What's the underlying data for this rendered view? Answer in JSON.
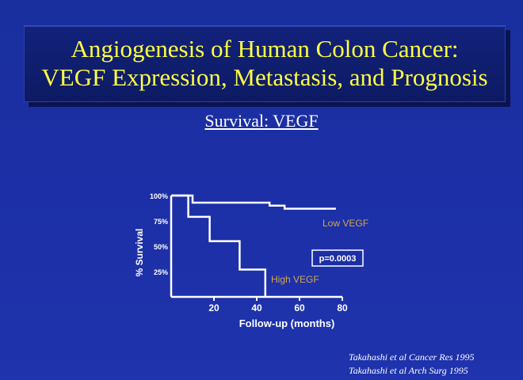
{
  "title": {
    "line1": "Angiogenesis of Human Colon Cancer:",
    "line2": "VEGF Expression, Metastasis, and Prognosis"
  },
  "subtitle": "Survival: VEGF",
  "colors": {
    "background": "#1c2fa6",
    "title_text": "#ffff44",
    "series_label": "#d4a64a",
    "lines": "#ffffff"
  },
  "chart_data": {
    "type": "line",
    "step": true,
    "xlabel": "Follow-up (months)",
    "ylabel": "% Survival",
    "xlim": [
      0,
      80
    ],
    "ylim": [
      0,
      100
    ],
    "x_ticks": [
      20,
      40,
      60,
      80
    ],
    "y_ticks": [
      25,
      50,
      75,
      100
    ],
    "y_tick_labels": [
      "25%",
      "50%",
      "75%",
      "100%"
    ],
    "grid": false,
    "series": [
      {
        "name": "Low VEGF",
        "points": [
          [
            0,
            100
          ],
          [
            10,
            100
          ],
          [
            10,
            93
          ],
          [
            46,
            93
          ],
          [
            46,
            90
          ],
          [
            53,
            90
          ],
          [
            53,
            87
          ],
          [
            77,
            87
          ]
        ]
      },
      {
        "name": "High VEGF",
        "points": [
          [
            0,
            100
          ],
          [
            8,
            100
          ],
          [
            8,
            79
          ],
          [
            18,
            79
          ],
          [
            18,
            55
          ],
          [
            32,
            55
          ],
          [
            32,
            27
          ],
          [
            44,
            27
          ],
          [
            44,
            0
          ]
        ]
      }
    ],
    "annotations": [
      {
        "text": "p=0.0003",
        "boxed": true
      }
    ]
  },
  "citations": [
    "Takahashi et al Cancer Res 1995",
    "Takahashi et al Arch Surg 1995"
  ]
}
